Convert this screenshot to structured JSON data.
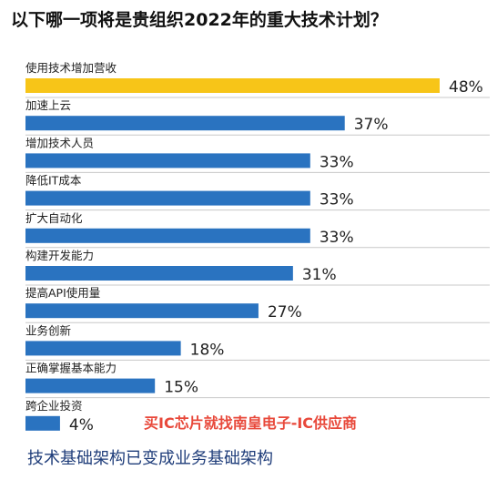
{
  "title": "以下哪一项将是贵组织2022年的重大技术计划？",
  "footer": "技术基础架构已变成业务基础架构",
  "watermark": "买IC芯片就找南皇电子-IC供应商",
  "colors": {
    "highlight": "#f7c518",
    "bar": "#2a73c0",
    "separator": "#c8c8c8"
  },
  "chart_data": {
    "type": "bar",
    "orientation": "horizontal",
    "title": "以下哪一项将是贵组织2022年的重大技术计划？",
    "categories": [
      "使用技术增加营收",
      "加速上云",
      "增加技术人员",
      "降低IT成本",
      "扩大自动化",
      "构建开发能力",
      "提高API使用量",
      "业务创新",
      "正确掌握基本能力",
      "跨企业投资"
    ],
    "values": [
      48,
      37,
      33,
      33,
      33,
      31,
      27,
      18,
      15,
      4
    ],
    "value_labels": [
      "48%",
      "37%",
      "33%",
      "33%",
      "33%",
      "31%",
      "27%",
      "18%",
      "15%",
      "4%"
    ],
    "highlight_index": 0,
    "xlim": [
      0,
      48
    ],
    "grid": false,
    "legend": "none"
  }
}
